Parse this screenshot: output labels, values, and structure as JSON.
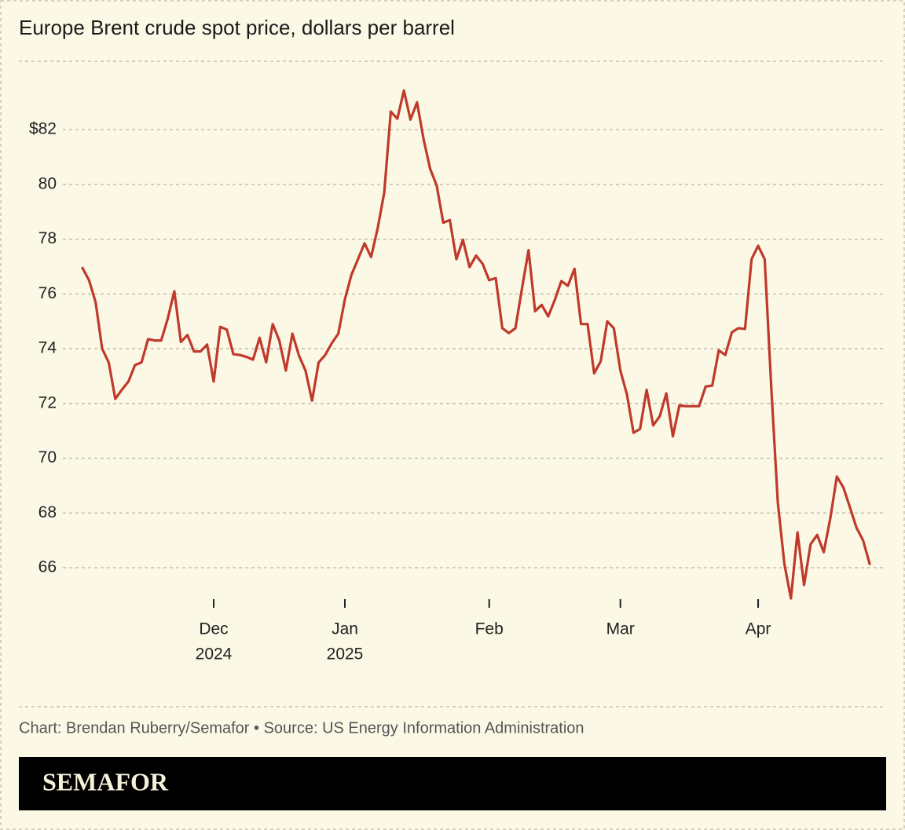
{
  "chart_data": {
    "type": "line",
    "title": "Europe Brent crude spot price, dollars per barrel",
    "source": "Chart: Brendan Ruberry/Semafor • Source: US Energy Information Administration",
    "brand": "SEMAFOR",
    "color": "#c0392b",
    "grid": true,
    "xlim": [
      0,
      120
    ],
    "xticks": [
      {
        "value": 20,
        "label": "Dec"
      },
      {
        "value": 40,
        "label": "Jan"
      },
      {
        "value": 62,
        "label": "Feb"
      },
      {
        "value": 82,
        "label": "Mar"
      },
      {
        "value": 103,
        "label": "Apr"
      }
    ],
    "xtick_years": [
      "2024",
      "2025",
      null,
      null,
      null
    ],
    "ylim": [
      64.6,
      84.5
    ],
    "yticks": [
      66,
      68,
      70,
      72,
      74,
      76,
      78,
      80,
      {
        "value": 82,
        "label": "$82"
      }
    ],
    "values": [
      76.95,
      76.5,
      75.7,
      74.0,
      73.5,
      72.17,
      72.5,
      72.8,
      73.4,
      73.5,
      74.35,
      74.3,
      74.3,
      75.1,
      76.1,
      74.25,
      74.5,
      73.9,
      73.9,
      74.15,
      72.8,
      74.8,
      74.7,
      73.8,
      73.77,
      73.7,
      73.6,
      74.4,
      73.5,
      74.9,
      74.3,
      73.2,
      74.55,
      73.75,
      73.2,
      72.1,
      73.5,
      73.77,
      74.2,
      74.55,
      75.8,
      76.7,
      77.27,
      77.85,
      77.35,
      78.4,
      79.7,
      82.66,
      82.4,
      83.43,
      82.37,
      83.0,
      81.65,
      80.57,
      79.96,
      78.6,
      78.7,
      77.27,
      77.98,
      76.98,
      77.4,
      77.1,
      76.5,
      76.58,
      74.75,
      74.57,
      74.75,
      76.2,
      77.6,
      75.37,
      75.6,
      75.18,
      75.78,
      76.47,
      76.3,
      76.92,
      74.9,
      74.9,
      73.1,
      73.54,
      75.0,
      74.75,
      73.2,
      72.33,
      70.93,
      71.07,
      72.5,
      71.2,
      71.53,
      72.37,
      70.8,
      71.93,
      71.9,
      71.9,
      71.9,
      72.62,
      72.65,
      73.94,
      73.77,
      74.6,
      74.75,
      74.72,
      77.27,
      77.76,
      77.27,
      72.6,
      68.38,
      66.14,
      64.88,
      67.29,
      65.37,
      66.86,
      67.2,
      66.57,
      67.8,
      69.33,
      68.93,
      68.2,
      67.46,
      67.0,
      66.14
    ]
  }
}
